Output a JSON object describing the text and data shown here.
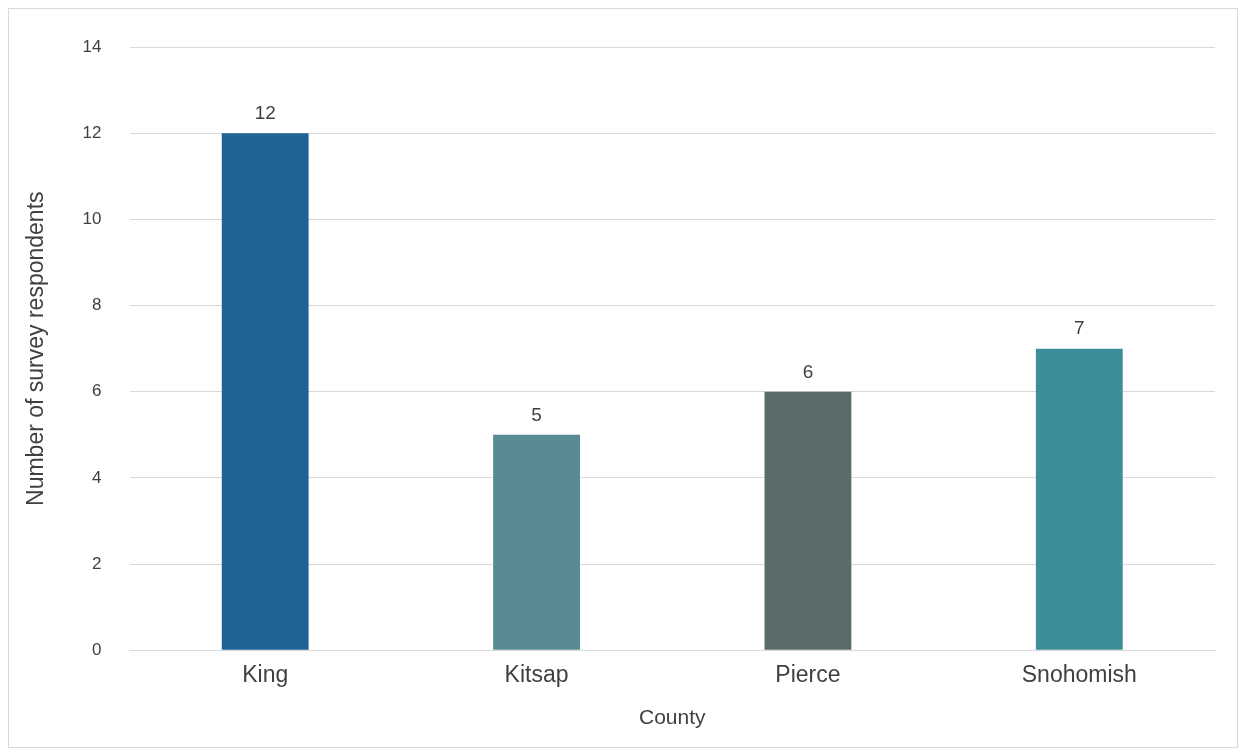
{
  "chart_data": {
    "type": "bar",
    "xlabel": "County",
    "ylabel": "Number of survey respondents",
    "categories": [
      "King",
      "Kitsap",
      "Pierce",
      "Snohomish"
    ],
    "values": [
      12,
      5,
      6,
      7
    ],
    "colors": [
      "#1f6395",
      "#588a94",
      "#5b6b6b",
      "#3b8f99"
    ],
    "ylim": [
      0,
      14
    ],
    "yticks": [
      0,
      2,
      4,
      6,
      8,
      10,
      12,
      14
    ],
    "grid": "y",
    "data_labels": true,
    "legend": false
  }
}
